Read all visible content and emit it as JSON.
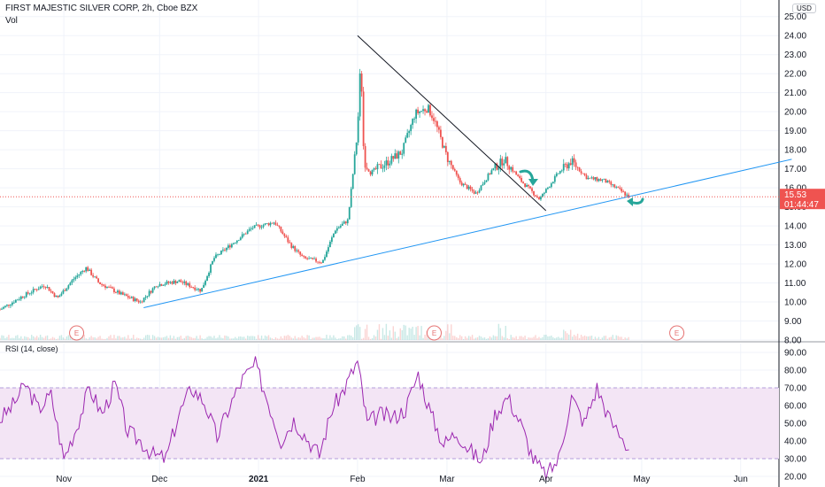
{
  "header": {
    "title": "FIRST MAJESTIC SILVER CORP, 2h, Cboe BZX",
    "volume_label": "Vol",
    "currency": "USD"
  },
  "last_price": {
    "value": "15.53",
    "countdown": "01:44:47",
    "color": "#ef5350"
  },
  "colors": {
    "up": "#26a69a",
    "down": "#ef5350",
    "trendline_down": "#131722",
    "trendline_up": "#2196f3",
    "rsi_line": "#9c27b0",
    "rsi_band": "#f3e5f5",
    "arrows": "#26a69a"
  },
  "earnings_markers": [
    {
      "label": "E",
      "date": "2020-11-05"
    },
    {
      "label": "E",
      "date": "2021-02-25"
    },
    {
      "label": "E",
      "date": "2021-05-12"
    }
  ],
  "chart_data": [
    {
      "type": "line",
      "subtype": "candlestick-price",
      "title": "FIRST MAJESTIC SILVER CORP, 2h, Cboe BZX",
      "ylabel": "USD",
      "ylim": [
        8,
        25.5
      ],
      "yticks": [
        "25.00",
        "24.00",
        "23.00",
        "22.00",
        "21.00",
        "20.00",
        "19.00",
        "18.00",
        "17.00",
        "16.00",
        "15.00",
        "14.00",
        "13.00",
        "12.00",
        "11.00",
        "10.00",
        "9.00",
        "8.00"
      ],
      "xticks": [
        "Nov",
        "Dec",
        "2021",
        "Feb",
        "Mar",
        "Apr",
        "May",
        "Jun"
      ],
      "x_range": [
        "2020-10-12",
        "2021-06-13"
      ],
      "grid": true,
      "series": [
        {
          "role": "price-approx",
          "x": [
            "2020-10-12",
            "2020-10-19",
            "2020-10-26",
            "2020-10-30",
            "2020-11-04",
            "2020-11-08",
            "2020-11-12",
            "2020-11-19",
            "2020-11-25",
            "2020-11-30",
            "2020-12-07",
            "2020-12-14",
            "2020-12-18",
            "2020-12-24",
            "2020-12-30",
            "2021-01-06",
            "2021-01-11",
            "2021-01-15",
            "2021-01-21",
            "2021-01-25",
            "2021-01-29",
            "2021-02-01",
            "2021-02-02",
            "2021-02-03",
            "2021-02-05",
            "2021-02-10",
            "2021-02-15",
            "2021-02-19",
            "2021-02-23",
            "2021-02-25",
            "2021-03-01",
            "2021-03-05",
            "2021-03-10",
            "2021-03-15",
            "2021-03-19",
            "2021-03-24",
            "2021-03-30",
            "2021-04-05",
            "2021-04-09",
            "2021-04-14",
            "2021-04-19",
            "2021-04-23",
            "2021-04-27"
          ],
          "values": [
            9.6,
            10.3,
            10.9,
            10.2,
            11.2,
            11.8,
            11.0,
            10.4,
            10.0,
            10.9,
            11.1,
            10.6,
            12.3,
            13.1,
            13.9,
            14.2,
            13.0,
            12.3,
            12.1,
            13.8,
            14.3,
            19.0,
            22.8,
            17.4,
            16.8,
            17.3,
            17.9,
            19.9,
            20.2,
            19.6,
            17.6,
            16.3,
            15.7,
            16.9,
            17.5,
            16.4,
            15.4,
            16.8,
            17.4,
            16.5,
            16.4,
            16.0,
            15.53
          ]
        },
        {
          "role": "descending-trendline",
          "x": [
            "2021-02-01",
            "2021-04-01"
          ],
          "values": [
            24.0,
            14.8
          ]
        },
        {
          "role": "ascending-trendline",
          "x": [
            "2020-11-26",
            "2021-06-17"
          ],
          "values": [
            9.7,
            17.5
          ]
        }
      ]
    },
    {
      "type": "line",
      "title": "RSI (14, close)",
      "ylim": [
        15,
        95
      ],
      "yticks": [
        "90.00",
        "80.00",
        "70.00",
        "60.00",
        "50.00",
        "40.00",
        "30.00",
        "20.00"
      ],
      "band": [
        30,
        70
      ],
      "grid": true,
      "series": [
        {
          "x": [
            "2020-10-12",
            "2020-10-16",
            "2020-10-20",
            "2020-10-24",
            "2020-10-28",
            "2020-11-01",
            "2020-11-05",
            "2020-11-09",
            "2020-11-13",
            "2020-11-17",
            "2020-11-21",
            "2020-11-25",
            "2020-11-29",
            "2020-12-03",
            "2020-12-07",
            "2020-12-11",
            "2020-12-15",
            "2020-12-19",
            "2020-12-23",
            "2020-12-27",
            "2020-12-31",
            "2021-01-04",
            "2021-01-08",
            "2021-01-12",
            "2021-01-16",
            "2021-01-20",
            "2021-01-24",
            "2021-01-28",
            "2021-02-01",
            "2021-02-04",
            "2021-02-08",
            "2021-02-12",
            "2021-02-16",
            "2021-02-20",
            "2021-02-24",
            "2021-02-28",
            "2021-03-04",
            "2021-03-08",
            "2021-03-12",
            "2021-03-16",
            "2021-03-20",
            "2021-03-24",
            "2021-03-28",
            "2021-04-01",
            "2021-04-05",
            "2021-04-09",
            "2021-04-13",
            "2021-04-17",
            "2021-04-21",
            "2021-04-27"
          ],
          "values": [
            52,
            60,
            72,
            58,
            66,
            30,
            48,
            70,
            55,
            72,
            45,
            40,
            32,
            30,
            55,
            70,
            62,
            42,
            60,
            75,
            83,
            62,
            40,
            52,
            42,
            32,
            58,
            70,
            85,
            50,
            55,
            53,
            58,
            78,
            55,
            38,
            45,
            35,
            28,
            55,
            65,
            50,
            30,
            20,
            30,
            65,
            50,
            70,
            52,
            35
          ]
        }
      ]
    }
  ]
}
